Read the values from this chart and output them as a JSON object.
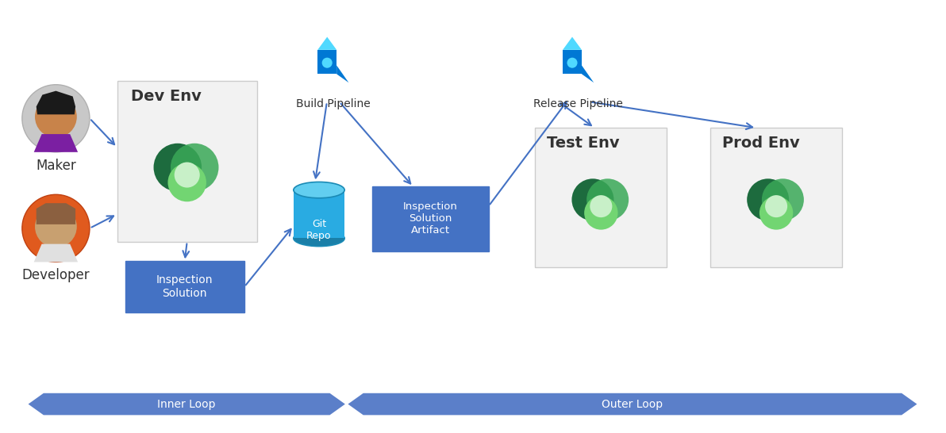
{
  "bg_color": "#ffffff",
  "arrow_blue": "#4472c4",
  "box_bg": "#f2f2f2",
  "box_border": "#cccccc",
  "blue_box_bg": "#4472c4",
  "loop_color": "#5b7fc9",
  "inner_loop_label": "Inner Loop",
  "outer_loop_label": "Outer Loop",
  "labels": {
    "maker": "Maker",
    "developer": "Developer",
    "dev_env": "Dev Env",
    "inspection_solution": "Inspection\nSolution",
    "git_repo": "Git\nRepo",
    "build_pipeline": "Build Pipeline",
    "inspection_artifact": "Inspection\nSolution\nArtifact",
    "release_pipeline": "Release Pipeline",
    "test_env": "Test Env",
    "prod_env": "Prod Env"
  }
}
